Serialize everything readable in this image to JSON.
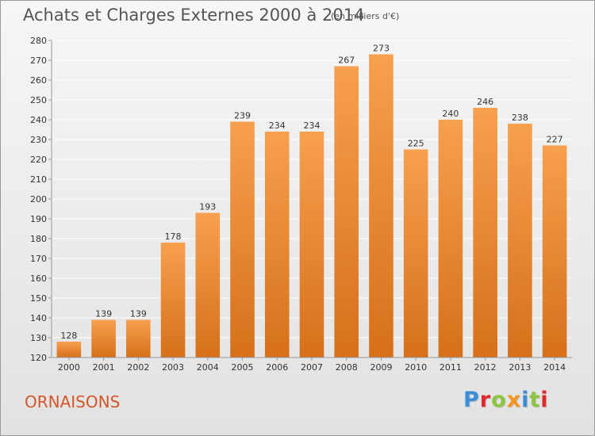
{
  "header": {
    "title": "Achats et Charges Externes 2000 à 2014",
    "subtitle": "(en milliers d'€)"
  },
  "footer": {
    "commune": "ORNAISONS",
    "brand": "Proxiti",
    "brand_letters": [
      {
        "ch": "P",
        "color": "#3a8ed8"
      },
      {
        "ch": "r",
        "color": "#e2262a"
      },
      {
        "ch": "o",
        "color": "#8cc63f"
      },
      {
        "ch": "x",
        "color": "#f7941d"
      },
      {
        "ch": "i",
        "color": "#3a8ed8"
      },
      {
        "ch": "t",
        "color": "#8cc63f"
      },
      {
        "ch": "i",
        "color": "#e2262a"
      }
    ]
  },
  "colors": {
    "bar_top": "#f7a04e",
    "bar_bottom": "#d6701a",
    "grid": "#ffffff",
    "axis_text": "#333333",
    "commune": "#d4562a"
  },
  "chart_data": {
    "type": "bar",
    "title": "Achats et Charges Externes 2000 à 2014",
    "subtitle": "(en milliers d'€)",
    "categories": [
      "2000",
      "2001",
      "2002",
      "2003",
      "2004",
      "2005",
      "2006",
      "2007",
      "2008",
      "2009",
      "2010",
      "2011",
      "2012",
      "2013",
      "2014"
    ],
    "values": [
      128,
      139,
      139,
      178,
      193,
      239,
      234,
      234,
      267,
      273,
      225,
      240,
      246,
      238,
      227
    ],
    "ylim": [
      120,
      280
    ],
    "yticks": [
      120,
      130,
      140,
      150,
      160,
      170,
      180,
      190,
      200,
      210,
      220,
      230,
      240,
      250,
      260,
      270,
      280
    ],
    "grid": true,
    "data_labels": true
  }
}
